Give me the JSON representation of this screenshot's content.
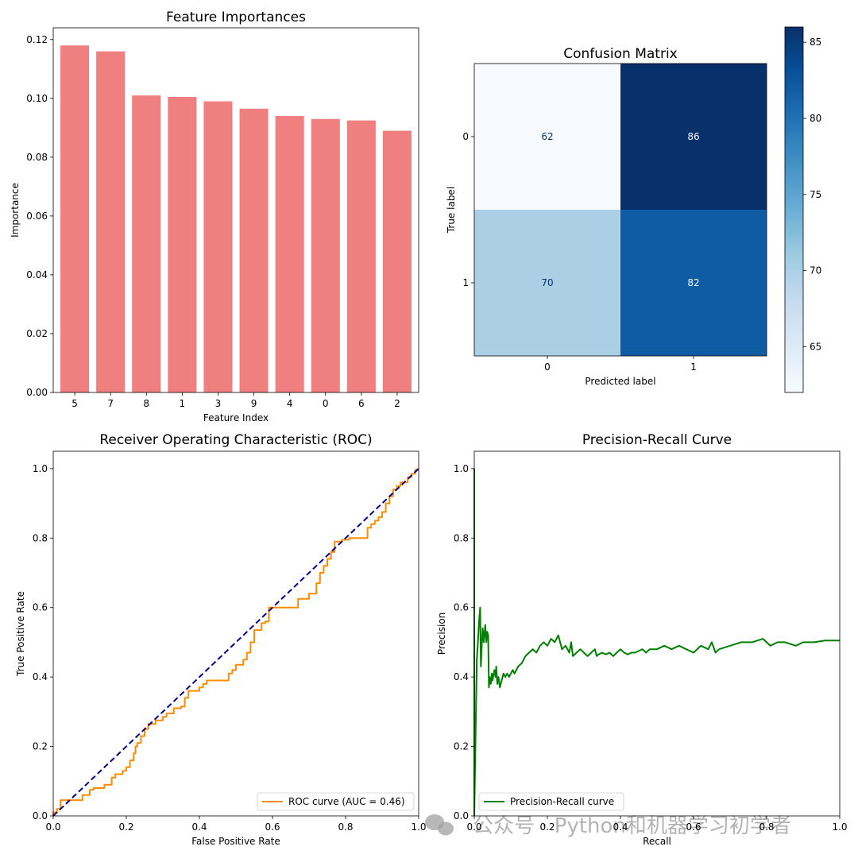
{
  "watermark": "公众号 · Python和机器学习初学者",
  "chart_data": [
    {
      "id": "feature_importances",
      "type": "bar",
      "title": "Feature Importances",
      "xlabel": "Feature Index",
      "ylabel": "Importance",
      "categories": [
        "5",
        "7",
        "8",
        "1",
        "3",
        "9",
        "4",
        "0",
        "6",
        "2"
      ],
      "values": [
        0.118,
        0.116,
        0.101,
        0.1005,
        0.099,
        0.0965,
        0.094,
        0.093,
        0.0925,
        0.089
      ],
      "ylim": [
        0,
        0.124
      ],
      "yticks": [
        "0.00",
        "0.02",
        "0.04",
        "0.06",
        "0.08",
        "0.10",
        "0.12"
      ],
      "color": "#f08080"
    },
    {
      "id": "confusion_matrix",
      "type": "heatmap",
      "title": "Confusion Matrix",
      "xlabel": "Predicted label",
      "ylabel": "True label",
      "x_categories": [
        "0",
        "1"
      ],
      "y_categories": [
        "0",
        "1"
      ],
      "values": [
        [
          62,
          86
        ],
        [
          70,
          82
        ]
      ],
      "colorbar_range": [
        62,
        86
      ],
      "colorbar_ticks": [
        "65",
        "70",
        "75",
        "80",
        "85"
      ],
      "colormap": "Blues"
    },
    {
      "id": "roc",
      "type": "line",
      "title": "Receiver Operating Characteristic (ROC)",
      "xlabel": "False Positive Rate",
      "ylabel": "True Positive Rate",
      "xlim": [
        0,
        1.0
      ],
      "ylim": [
        0,
        1.05
      ],
      "xticks": [
        "0.0",
        "0.2",
        "0.4",
        "0.6",
        "0.8",
        "1.0"
      ],
      "yticks": [
        "0.0",
        "0.2",
        "0.4",
        "0.6",
        "0.8",
        "1.0"
      ],
      "legend_position": "lower-right",
      "series": [
        {
          "name": "ROC curve (AUC = 0.46)",
          "color": "#ff8c00",
          "x": [
            0.0,
            0.0,
            0.01,
            0.01,
            0.02,
            0.02,
            0.04,
            0.04,
            0.08,
            0.08,
            0.1,
            0.1,
            0.11,
            0.11,
            0.14,
            0.14,
            0.16,
            0.16,
            0.17,
            0.17,
            0.19,
            0.19,
            0.2,
            0.2,
            0.21,
            0.21,
            0.22,
            0.22,
            0.225,
            0.225,
            0.23,
            0.23,
            0.24,
            0.24,
            0.25,
            0.25,
            0.26,
            0.26,
            0.28,
            0.28,
            0.3,
            0.3,
            0.31,
            0.31,
            0.33,
            0.33,
            0.34,
            0.34,
            0.35,
            0.35,
            0.36,
            0.36,
            0.37,
            0.37,
            0.4,
            0.4,
            0.41,
            0.41,
            0.42,
            0.42,
            0.44,
            0.44,
            0.48,
            0.48,
            0.49,
            0.49,
            0.5,
            0.5,
            0.51,
            0.51,
            0.52,
            0.52,
            0.53,
            0.53,
            0.54,
            0.54,
            0.55,
            0.55,
            0.57,
            0.57,
            0.58,
            0.58,
            0.59,
            0.59,
            0.63,
            0.63,
            0.67,
            0.67,
            0.7,
            0.7,
            0.72,
            0.72,
            0.73,
            0.73,
            0.74,
            0.74,
            0.75,
            0.75,
            0.76,
            0.76,
            0.77,
            0.77,
            0.79,
            0.79,
            0.81,
            0.81,
            0.86,
            0.86,
            0.87,
            0.87,
            0.88,
            0.88,
            0.89,
            0.89,
            0.9,
            0.9,
            0.91,
            0.91,
            0.92,
            0.92,
            0.93,
            0.93,
            0.94,
            0.94,
            0.95,
            0.95,
            0.97,
            0.97,
            0.98,
            0.98,
            0.99,
            0.99,
            1.0
          ],
          "y": [
            0.0,
            0.01,
            0.01,
            0.02,
            0.02,
            0.045,
            0.045,
            0.045,
            0.045,
            0.06,
            0.06,
            0.075,
            0.075,
            0.08,
            0.08,
            0.09,
            0.09,
            0.11,
            0.11,
            0.12,
            0.12,
            0.13,
            0.13,
            0.14,
            0.14,
            0.16,
            0.16,
            0.18,
            0.18,
            0.2,
            0.2,
            0.21,
            0.21,
            0.23,
            0.23,
            0.25,
            0.25,
            0.265,
            0.265,
            0.275,
            0.275,
            0.285,
            0.285,
            0.295,
            0.295,
            0.31,
            0.31,
            0.31,
            0.31,
            0.315,
            0.315,
            0.34,
            0.34,
            0.36,
            0.36,
            0.37,
            0.37,
            0.38,
            0.38,
            0.39,
            0.39,
            0.39,
            0.39,
            0.41,
            0.41,
            0.42,
            0.42,
            0.435,
            0.435,
            0.435,
            0.435,
            0.45,
            0.45,
            0.47,
            0.47,
            0.5,
            0.5,
            0.535,
            0.535,
            0.555,
            0.555,
            0.56,
            0.56,
            0.6,
            0.6,
            0.6,
            0.6,
            0.625,
            0.625,
            0.64,
            0.64,
            0.67,
            0.67,
            0.7,
            0.7,
            0.72,
            0.72,
            0.74,
            0.74,
            0.76,
            0.76,
            0.79,
            0.79,
            0.795,
            0.795,
            0.8,
            0.8,
            0.83,
            0.83,
            0.84,
            0.84,
            0.85,
            0.85,
            0.86,
            0.86,
            0.875,
            0.875,
            0.9,
            0.9,
            0.92,
            0.92,
            0.94,
            0.94,
            0.95,
            0.95,
            0.96,
            0.96,
            0.975,
            0.975,
            0.985,
            0.985,
            0.995,
            1.0
          ]
        },
        {
          "name": "",
          "color": "#00008b",
          "dashed": true,
          "x": [
            0,
            1
          ],
          "y": [
            0,
            1
          ]
        }
      ]
    },
    {
      "id": "precision_recall",
      "type": "line",
      "title": "Precision-Recall Curve",
      "xlabel": "Recall",
      "ylabel": "Precision",
      "xlim": [
        0,
        1.0
      ],
      "ylim": [
        0,
        1.05
      ],
      "xticks": [
        "0.0",
        "0.2",
        "0.4",
        "0.6",
        "0.8",
        "1.0"
      ],
      "yticks": [
        "0.0",
        "0.2",
        "0.4",
        "0.6",
        "0.8",
        "1.0"
      ],
      "legend_position": "lower-left",
      "series": [
        {
          "name": "Precision-Recall curve",
          "color": "#008000",
          "x": [
            0.0,
            0.0,
            0.003,
            0.005,
            0.007,
            0.01,
            0.013,
            0.016,
            0.018,
            0.02,
            0.023,
            0.026,
            0.03,
            0.033,
            0.035,
            0.038,
            0.04,
            0.042,
            0.045,
            0.048,
            0.05,
            0.055,
            0.058,
            0.06,
            0.063,
            0.066,
            0.07,
            0.075,
            0.08,
            0.085,
            0.09,
            0.095,
            0.1,
            0.105,
            0.11,
            0.12,
            0.13,
            0.14,
            0.15,
            0.16,
            0.17,
            0.18,
            0.19,
            0.2,
            0.21,
            0.22,
            0.23,
            0.24,
            0.25,
            0.26,
            0.265,
            0.27,
            0.28,
            0.29,
            0.3,
            0.31,
            0.32,
            0.33,
            0.335,
            0.34,
            0.35,
            0.36,
            0.37,
            0.38,
            0.39,
            0.4,
            0.41,
            0.42,
            0.43,
            0.44,
            0.45,
            0.46,
            0.47,
            0.48,
            0.5,
            0.52,
            0.54,
            0.56,
            0.58,
            0.6,
            0.62,
            0.64,
            0.65,
            0.66,
            0.67,
            0.7,
            0.73,
            0.76,
            0.79,
            0.8,
            0.81,
            0.83,
            0.85,
            0.88,
            0.9,
            0.93,
            0.96,
            1.0
          ],
          "y": [
            1.0,
            0.0,
            0.2,
            0.33,
            0.45,
            0.5,
            0.56,
            0.6,
            0.43,
            0.48,
            0.54,
            0.5,
            0.55,
            0.5,
            0.53,
            0.52,
            0.37,
            0.4,
            0.38,
            0.41,
            0.39,
            0.42,
            0.4,
            0.43,
            0.38,
            0.4,
            0.37,
            0.39,
            0.41,
            0.4,
            0.41,
            0.4,
            0.41,
            0.42,
            0.41,
            0.43,
            0.44,
            0.46,
            0.47,
            0.48,
            0.47,
            0.49,
            0.5,
            0.49,
            0.51,
            0.5,
            0.52,
            0.48,
            0.49,
            0.47,
            0.5,
            0.46,
            0.47,
            0.48,
            0.47,
            0.46,
            0.47,
            0.48,
            0.46,
            0.465,
            0.47,
            0.465,
            0.47,
            0.46,
            0.47,
            0.48,
            0.47,
            0.465,
            0.47,
            0.47,
            0.475,
            0.48,
            0.47,
            0.48,
            0.48,
            0.49,
            0.48,
            0.49,
            0.48,
            0.47,
            0.49,
            0.48,
            0.5,
            0.47,
            0.48,
            0.49,
            0.5,
            0.5,
            0.51,
            0.5,
            0.49,
            0.5,
            0.5,
            0.49,
            0.5,
            0.5,
            0.505,
            0.505
          ]
        }
      ]
    }
  ]
}
